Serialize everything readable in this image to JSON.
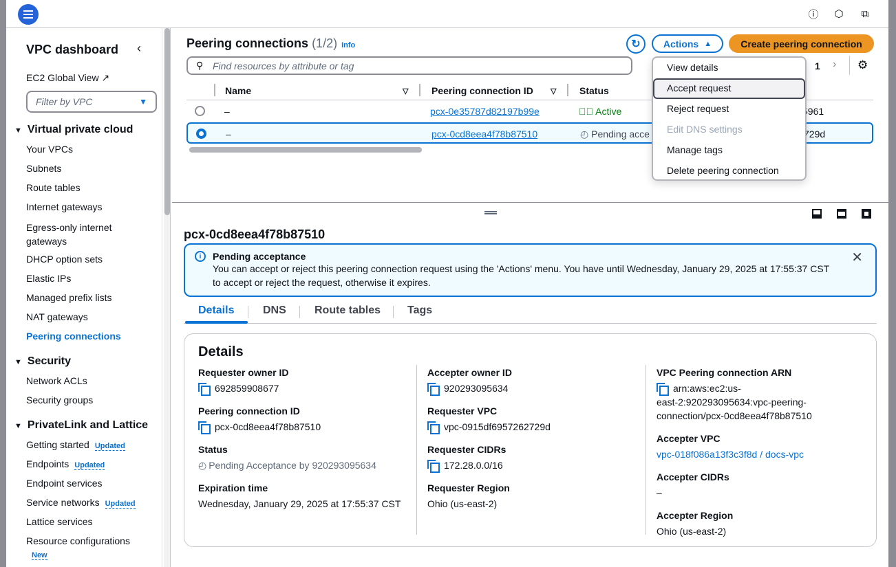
{
  "topbar": {
    "icons": [
      "menu-icon",
      "info-icon",
      "notifications-icon",
      "cloudshell-icon"
    ]
  },
  "sidebar": {
    "title": "VPC dashboard",
    "global_view": "EC2 Global View",
    "filter_placeholder": "Filter by VPC",
    "sections": [
      {
        "label": "Virtual private cloud",
        "items": [
          "Your VPCs",
          "Subnets",
          "Route tables",
          "Internet gateways",
          "Egress-only internet gateways",
          "DHCP option sets",
          "Elastic IPs",
          "Managed prefix lists",
          "NAT gateways",
          "Peering connections"
        ]
      },
      {
        "label": "Security",
        "items": [
          "Network ACLs",
          "Security groups"
        ]
      },
      {
        "label": "PrivateLink and Lattice",
        "items": [
          "Getting started",
          "Endpoints",
          "Endpoint services",
          "Service networks",
          "Lattice services",
          "Resource configurations"
        ]
      }
    ],
    "active_item": "Peering connections",
    "badges": {
      "updated": "Updated",
      "new": "New"
    }
  },
  "main": {
    "title": "Peering connections",
    "count": "(1/2)",
    "info": "Info",
    "search_placeholder": "Find resources by attribute or tag",
    "actions_label": "Actions",
    "create_label": "Create peering connection",
    "page": "1",
    "columns": [
      "Name",
      "Peering connection ID",
      "Status"
    ],
    "rows": [
      {
        "name": "–",
        "id": "pcx-0e35787d82197b99e",
        "status": "Active",
        "extra": "5961",
        "selected": false
      },
      {
        "name": "–",
        "id": "pcx-0cd8eea4f78b87510",
        "status": "Pending acce",
        "extra": "729d",
        "selected": true
      }
    ],
    "menu": [
      "View details",
      "Accept request",
      "Reject request",
      "Edit DNS settings",
      "Manage tags",
      "Delete peering connection"
    ],
    "menu_highlighted": "Accept request",
    "menu_disabled": "Edit DNS settings"
  },
  "detail": {
    "title": "pcx-0cd8eea4f78b87510",
    "alert": {
      "title": "Pending acceptance",
      "line1": "You can accept or reject this peering connection request using the 'Actions' menu. You have until Wednesday, January 29, 2025 at 17:55:37 CST",
      "line2": "to accept or reject the request, otherwise it expires."
    },
    "tabs": [
      "Details",
      "DNS",
      "Route tables",
      "Tags"
    ],
    "active_tab": "Details",
    "card_title": "Details",
    "col1": [
      {
        "k": "Requester owner ID",
        "v": "692859908677"
      },
      {
        "k": "Peering connection ID",
        "v": "pcx-0cd8eea4f78b87510"
      },
      {
        "k": "Status",
        "v": "Pending Acceptance by 920293095634"
      },
      {
        "k": "Expiration time",
        "v": "Wednesday, January 29, 2025 at 17:55:37 CST"
      }
    ],
    "col2": [
      {
        "k": "Accepter owner ID",
        "v": "920293095634"
      },
      {
        "k": "Requester VPC",
        "v": "vpc-0915df6957262729d"
      },
      {
        "k": "Requester CIDRs",
        "v": "172.28.0.0/16"
      },
      {
        "k": "Requester Region",
        "v": "Ohio (us-east-2)"
      }
    ],
    "col3": [
      {
        "k": "VPC Peering connection ARN",
        "v1": "arn:aws:ec2:us-",
        "v2": "east-2:920293095634:vpc-peering-",
        "v3": "connection/pcx-0cd8eea4f78b87510"
      },
      {
        "k": "Accepter VPC",
        "v": "vpc-018f086a13f3c3f8d / docs-vpc"
      },
      {
        "k": "Accepter CIDRs",
        "v": "–"
      },
      {
        "k": "Accepter Region",
        "v": "Ohio (us-east-2)"
      }
    ]
  },
  "colors": {
    "accent": "#0972d3",
    "primary_button": "#ec9523",
    "success": "#037f0c"
  }
}
